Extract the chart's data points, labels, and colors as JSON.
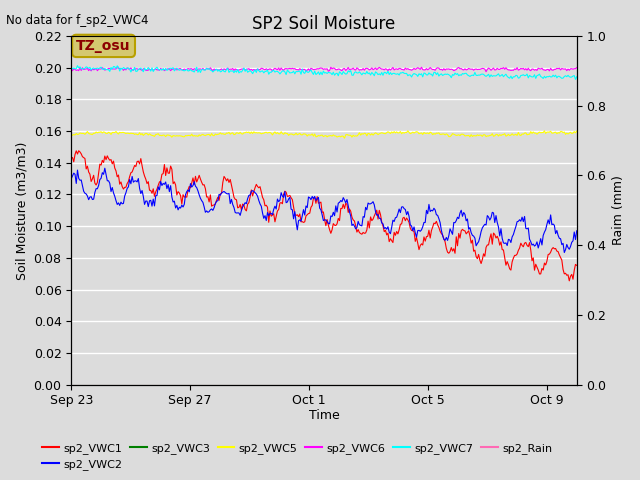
{
  "title": "SP2 Soil Moisture",
  "top_left_text": "No data for f_sp2_VWC4",
  "annotation_text": "TZ_osu",
  "annotation_color": "#d4c870",
  "annotation_edge": "#b8a000",
  "xlabel": "Time",
  "ylabel_left": "Soil Moisture (m3/m3)",
  "ylabel_right": "Raim (mm)",
  "ylim_left": [
    0.0,
    0.22
  ],
  "ylim_right": [
    0.0,
    1.0
  ],
  "x_ticks_labels": [
    "Sep 23",
    "Sep 27",
    "Oct 1",
    "Oct 5",
    "Oct 9"
  ],
  "x_tick_positions": [
    0,
    4,
    8,
    12,
    16
  ],
  "background_color": "#dcdcdc",
  "yticks_left": [
    0.0,
    0.02,
    0.04,
    0.06,
    0.08,
    0.1,
    0.12,
    0.14,
    0.16,
    0.18,
    0.2,
    0.22
  ],
  "yticks_right": [
    0.0,
    0.2,
    0.4,
    0.6,
    0.8,
    1.0
  ]
}
